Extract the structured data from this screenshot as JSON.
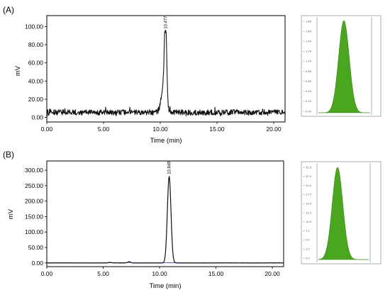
{
  "chart_data": [
    {
      "type": "line",
      "panel_label": "(A)",
      "xlabel": "Time (min)",
      "ylabel": "mV",
      "xlim": [
        0,
        21
      ],
      "ylim": [
        -5,
        112
      ],
      "x_ticks": [
        "0.00",
        "5.00",
        "10.00",
        "15.00",
        "20.00"
      ],
      "y_ticks": [
        "0.00",
        "20.00",
        "40.00",
        "60.00",
        "80.00",
        "100.00"
      ],
      "peak_annotation": "10.477",
      "baseline_mV": 5.5,
      "peak": {
        "x": 10.48,
        "y": 95
      },
      "series_color": "#111111",
      "inset": {
        "type": "area",
        "color": "#4aa61f",
        "y_ticks": [
          "1.80",
          "1.60",
          "1.40",
          "1.20",
          "1.00",
          "0.80",
          "0.60",
          "0.40",
          "0.20",
          "0.00"
        ]
      }
    },
    {
      "type": "line",
      "panel_label": "(B)",
      "xlabel": "Time (min)",
      "ylabel": "mV",
      "xlim": [
        0,
        21
      ],
      "ylim": [
        -12,
        330
      ],
      "x_ticks": [
        "0.00",
        "5.00",
        "10.00",
        "15.00",
        "20.00"
      ],
      "y_ticks": [
        "0.00",
        "50.00",
        "100.00",
        "150.00",
        "200.00",
        "250.00",
        "300.00"
      ],
      "peak_annotation": "10.849",
      "baseline_mV": 0,
      "peak": {
        "x": 10.85,
        "y": 280
      },
      "series_color": "#111111",
      "baseline_color": "#3a4fc0",
      "inset": {
        "type": "area",
        "color": "#4aa61f",
        "y_ticks": [
          "25.0",
          "22.5",
          "20.0",
          "17.5",
          "15.0",
          "12.5",
          "10.0",
          "7.5",
          "5.0",
          "2.5",
          "0.0"
        ]
      }
    }
  ]
}
